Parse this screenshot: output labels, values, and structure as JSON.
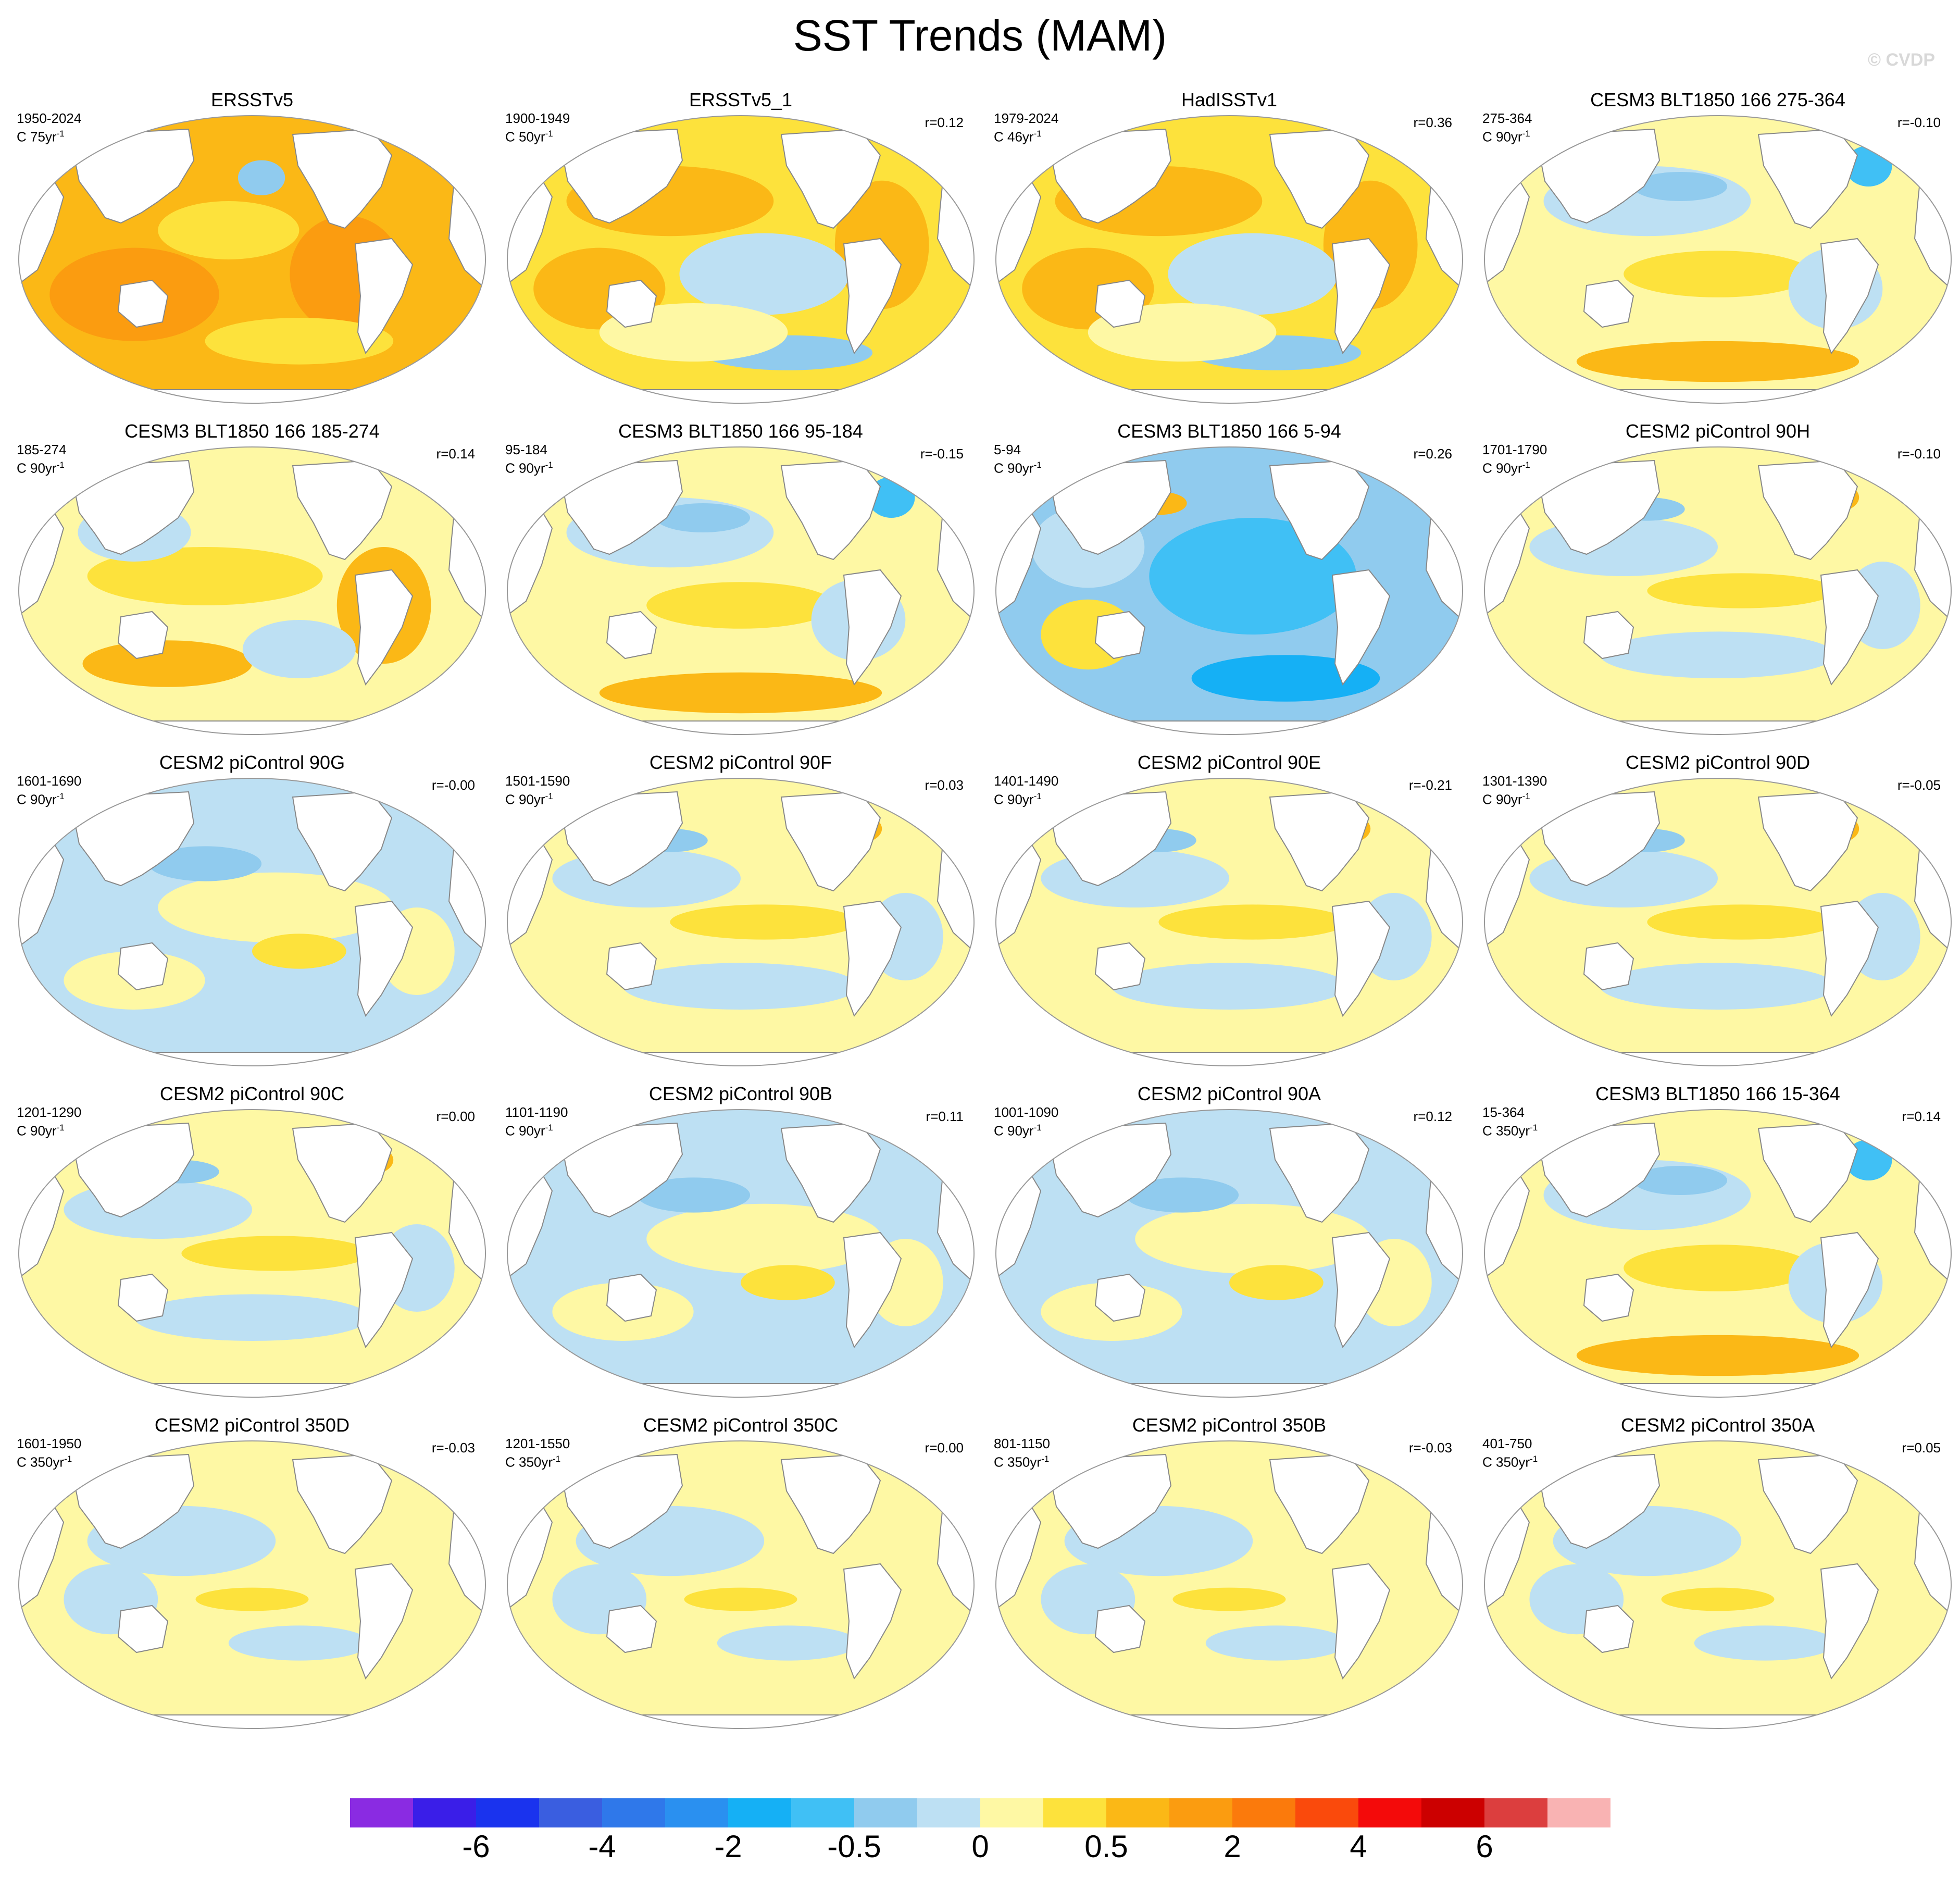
{
  "title": "SST Trends (MAM)",
  "copyright": "© CVDP",
  "units_prefix": "C",
  "units_suffix": "-1",
  "panels": [
    {
      "title": "ERSSTv5",
      "period": "1950-2024",
      "units": "75yr",
      "corr": "",
      "pattern": "warm"
    },
    {
      "title": "ERSSTv5_1",
      "period": "1900-1949",
      "units": "50yr",
      "corr": "r=0.12",
      "pattern": "warm-mixed"
    },
    {
      "title": "HadISSTv1",
      "period": "1979-2024",
      "units": "46yr",
      "corr": "r=0.36",
      "pattern": "warm-mixed"
    },
    {
      "title": "CESM3 BLT1850 166 275-364",
      "period": "275-364",
      "units": "90yr",
      "corr": "r=-0.10",
      "pattern": "mixed-south-warm"
    },
    {
      "title": "CESM3 BLT1850 166 185-274",
      "period": "185-274",
      "units": "90yr",
      "corr": "r=0.14",
      "pattern": "warmish"
    },
    {
      "title": "CESM3 BLT1850 166 95-184",
      "period": "95-184",
      "units": "90yr",
      "corr": "r=-0.15",
      "pattern": "mixed-south-warm"
    },
    {
      "title": "CESM3 BLT1850 166 5-94",
      "period": "5-94",
      "units": "90yr",
      "corr": "r=0.26",
      "pattern": "cold"
    },
    {
      "title": "CESM2 piControl 90H",
      "period": "1701-1790",
      "units": "90yr",
      "corr": "r=-0.10",
      "pattern": "mixed"
    },
    {
      "title": "CESM2 piControl 90G",
      "period": "1601-1690",
      "units": "90yr",
      "corr": "r=-0.00",
      "pattern": "mixed-cool"
    },
    {
      "title": "CESM2 piControl 90F",
      "period": "1501-1590",
      "units": "90yr",
      "corr": "r=0.03",
      "pattern": "mixed"
    },
    {
      "title": "CESM2 piControl 90E",
      "period": "1401-1490",
      "units": "90yr",
      "corr": "r=-0.21",
      "pattern": "mixed"
    },
    {
      "title": "CESM2 piControl 90D",
      "period": "1301-1390",
      "units": "90yr",
      "corr": "r=-0.05",
      "pattern": "mixed"
    },
    {
      "title": "CESM2 piControl 90C",
      "period": "1201-1290",
      "units": "90yr",
      "corr": "r=0.00",
      "pattern": "mixed"
    },
    {
      "title": "CESM2 piControl 90B",
      "period": "1101-1190",
      "units": "90yr",
      "corr": "r=0.11",
      "pattern": "mixed-cool"
    },
    {
      "title": "CESM2 piControl 90A",
      "period": "1001-1090",
      "units": "90yr",
      "corr": "r=0.12",
      "pattern": "mixed-cool"
    },
    {
      "title": "CESM3 BLT1850 166 15-364",
      "period": "15-364",
      "units": "350yr",
      "corr": "r=0.14",
      "pattern": "mixed-south-warm"
    },
    {
      "title": "CESM2 piControl 350D",
      "period": "1601-1950",
      "units": "350yr",
      "corr": "r=-0.03",
      "pattern": "weak"
    },
    {
      "title": "CESM2 piControl 350C",
      "period": "1201-1550",
      "units": "350yr",
      "corr": "r=0.00",
      "pattern": "weak"
    },
    {
      "title": "CESM2 piControl 350B",
      "period": "801-1150",
      "units": "350yr",
      "corr": "r=-0.03",
      "pattern": "weak"
    },
    {
      "title": "CESM2 piControl 350A",
      "period": "401-750",
      "units": "350yr",
      "corr": "r=0.05",
      "pattern": "weak"
    }
  ],
  "colorbar": {
    "colors": [
      "#8a2be2",
      "#3a1ee8",
      "#1a33ee",
      "#3a5ee0",
      "#2f78ea",
      "#2a90f0",
      "#15b0f5",
      "#40c0f5",
      "#90cbee",
      "#bde0f3",
      "#fef8a4",
      "#fde23c",
      "#fbb816",
      "#fb9c10",
      "#fb7a0c",
      "#fa4a0c",
      "#f40a0a",
      "#cc0000",
      "#dc3e3e",
      "#f9b3b3"
    ],
    "labels": [
      "-6",
      "-4",
      "-2",
      "-0.5",
      "0",
      "0.5",
      "2",
      "4",
      "6"
    ],
    "label_positions": [
      2,
      4,
      6,
      8,
      10,
      12,
      14,
      16,
      18
    ]
  },
  "palette": {
    "land": "#ffffff",
    "coast": "#888888",
    "neutral_warm": "#fef8a4",
    "neutral_cool": "#bde0f3",
    "warm1": "#fde23c",
    "warm2": "#fbb816",
    "warm3": "#fb9c10",
    "cool1": "#90cbee",
    "cool2": "#40c0f5",
    "cool3": "#15b0f5"
  }
}
